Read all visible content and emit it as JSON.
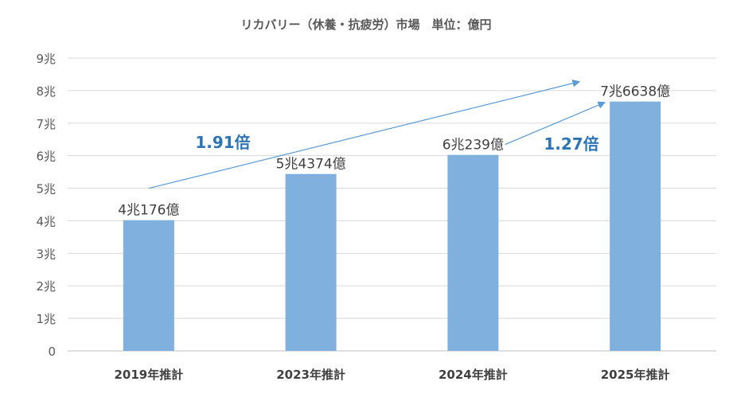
{
  "chart_data": {
    "type": "bar",
    "title": "リカバリー（休養・抗疲労）市場　単位：億円",
    "xlabel": "",
    "ylabel": "",
    "categories": [
      "2019年推計",
      "2023年推計",
      "2024年推計",
      "2025年推計"
    ],
    "values": [
      40176,
      54374,
      60239,
      76638
    ],
    "data_labels": [
      "4兆176億",
      "5兆4374億",
      "6兆239億",
      "7兆6638億"
    ],
    "ylim": [
      0,
      90000
    ],
    "y_ticks": [
      {
        "value": 0,
        "label": "0"
      },
      {
        "value": 10000,
        "label": "1兆"
      },
      {
        "value": 20000,
        "label": "2兆"
      },
      {
        "value": 30000,
        "label": "3兆"
      },
      {
        "value": 40000,
        "label": "4兆"
      },
      {
        "value": 50000,
        "label": "5兆"
      },
      {
        "value": 60000,
        "label": "6兆"
      },
      {
        "value": 70000,
        "label": "7兆"
      },
      {
        "value": 80000,
        "label": "8兆"
      },
      {
        "value": 90000,
        "label": "9兆"
      }
    ],
    "grid": true,
    "legend": "none",
    "bar_color": "#80b1de",
    "annotations": [
      {
        "label": "1.91倍",
        "from_category": 0,
        "to_category": 3
      },
      {
        "label": "1.27倍",
        "from_category": 2,
        "to_category": 3
      }
    ],
    "annotation_color": "#2e75b6"
  }
}
